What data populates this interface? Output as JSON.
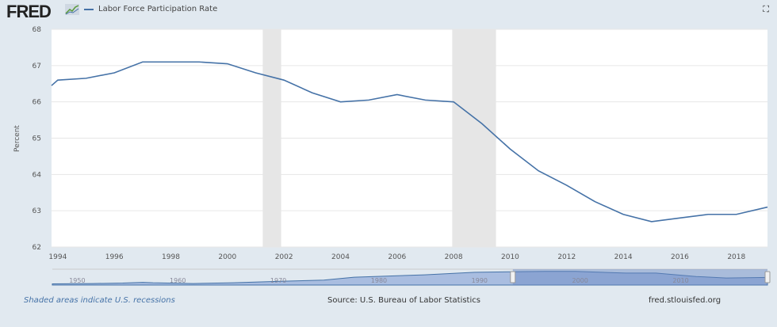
{
  "header": {
    "logo": "FRED",
    "legend_label": "Labor Force Participation Rate",
    "fullscreen_icon": "fullscreen-icon"
  },
  "footer": {
    "recessions_note": "Shaded areas indicate U.S. recessions",
    "source": "Source: U.S. Bureau of Labor Statistics",
    "site": "fred.stlouisfed.org"
  },
  "colors": {
    "line": "#4572a7",
    "recession": "#e6e6e6",
    "navigator_fill": "#7b9bcf"
  },
  "chart_data": {
    "type": "line",
    "title": "Labor Force Participation Rate",
    "xlabel": "",
    "ylabel": "Percent",
    "xlim": [
      1993.78,
      2019.1
    ],
    "ylim": [
      62,
      68
    ],
    "yticks": [
      62,
      63,
      64,
      65,
      66,
      67,
      68
    ],
    "xticks": [
      1994,
      1996,
      1998,
      2000,
      2002,
      2004,
      2006,
      2008,
      2010,
      2012,
      2014,
      2016,
      2018
    ],
    "grid": true,
    "series": [
      {
        "name": "Labor Force Participation Rate",
        "x": [
          1993.78,
          1994,
          1995,
          1996,
          1997,
          1998,
          1999,
          2000,
          2001,
          2002,
          2003,
          2004,
          2005,
          2006,
          2007,
          2008,
          2009,
          2010,
          2011,
          2012,
          2013,
          2014,
          2015,
          2016,
          2017,
          2018,
          2019.1
        ],
        "y": [
          66.45,
          66.6,
          66.65,
          66.8,
          67.1,
          67.1,
          67.1,
          67.05,
          66.8,
          66.6,
          66.25,
          66.0,
          66.05,
          66.2,
          66.05,
          66.0,
          65.4,
          64.7,
          64.1,
          63.7,
          63.25,
          62.9,
          62.7,
          62.8,
          62.9,
          62.9,
          63.1
        ]
      }
    ],
    "recessions": [
      [
        2001.25,
        2001.9
      ],
      [
        2007.95,
        2009.5
      ]
    ],
    "navigator": {
      "tick_labels": [
        "1950",
        "1960",
        "1970",
        "1980",
        "1990",
        "2000",
        "2010"
      ]
    }
  }
}
